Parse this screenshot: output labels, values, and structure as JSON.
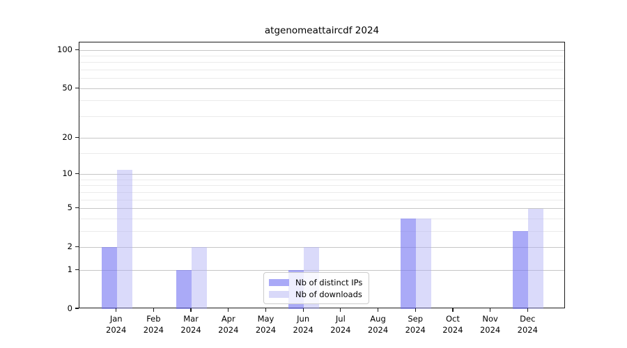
{
  "figure": {
    "title": "atgenomeattaircdf 2024"
  },
  "chart_data": {
    "type": "bar",
    "title": "atgenomeattaircdf 2024",
    "categories": [
      "Jan 2024",
      "Feb 2024",
      "Mar 2024",
      "Apr 2024",
      "May 2024",
      "Jun 2024",
      "Jul 2024",
      "Aug 2024",
      "Sep 2024",
      "Oct 2024",
      "Nov 2024",
      "Dec 2024"
    ],
    "x_tick_month": [
      "Jan",
      "Feb",
      "Mar",
      "Apr",
      "May",
      "Jun",
      "Jul",
      "Aug",
      "Sep",
      "Oct",
      "Nov",
      "Dec"
    ],
    "x_tick_year": "2024",
    "series": [
      {
        "name": "Nb of distinct IPs",
        "color": "#a9a9f7",
        "fill": "rgba(118,118,242,0.62)",
        "values": [
          2,
          0,
          1,
          0,
          0,
          1,
          0,
          0,
          4,
          0,
          0,
          3
        ]
      },
      {
        "name": "Nb of downloads",
        "color": "#d9d9f9",
        "fill": "rgba(172,172,244,0.45)",
        "values": [
          11,
          0,
          2,
          0,
          0,
          2,
          0,
          0,
          4,
          0,
          0,
          5
        ]
      }
    ],
    "yscale": "log1p",
    "ylim": [
      0,
      114
    ],
    "y_major_ticks": [
      100,
      50,
      20,
      10,
      5,
      2,
      1,
      0
    ],
    "y_minor_ticks": [
      3,
      4,
      6,
      7,
      8,
      9,
      15,
      30,
      40,
      60,
      70,
      80,
      90
    ],
    "grid": true,
    "legend_position": "lower center",
    "colors": {
      "major_grid": "#c6c6c6",
      "minor_grid": "#ebebeb",
      "axis": "#1a1a1a"
    }
  }
}
